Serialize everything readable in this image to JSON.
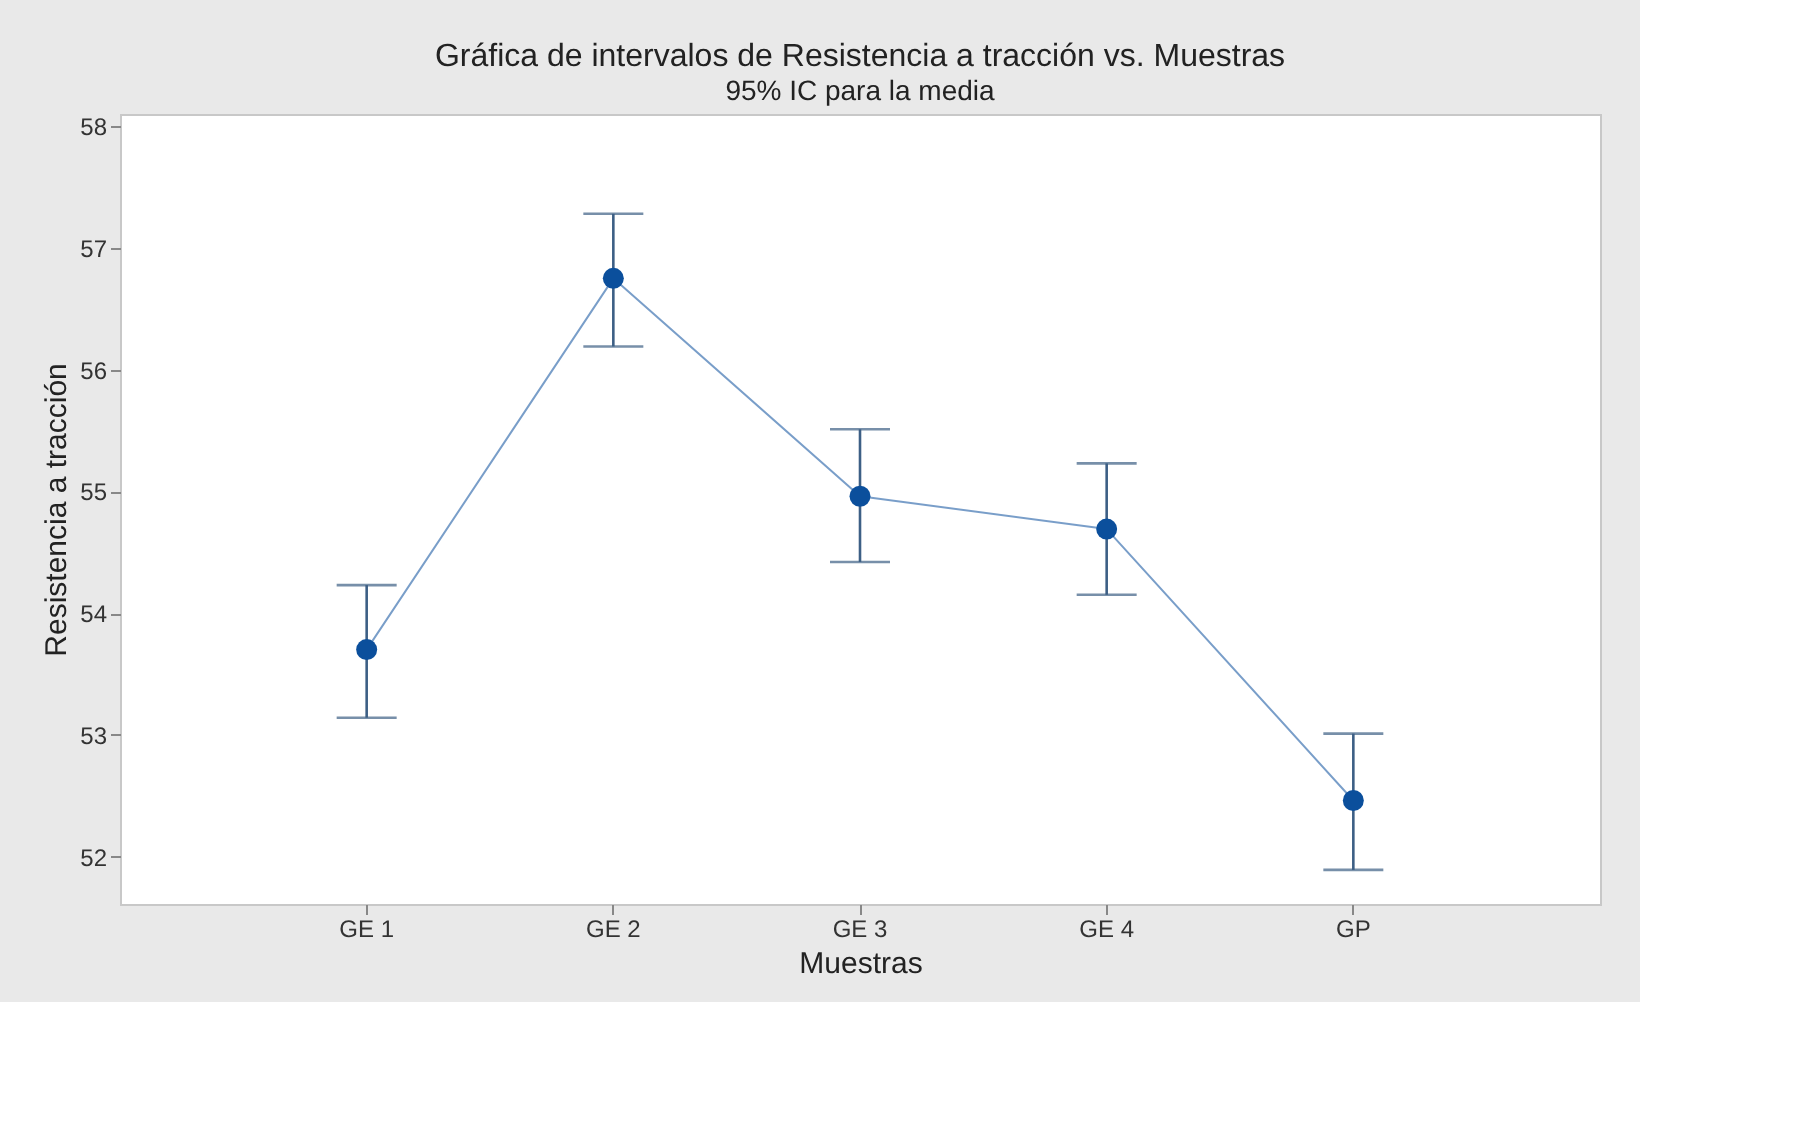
{
  "chart_data": {
    "type": "line",
    "title": "Gráfica de intervalos de Resistencia a tracción vs. Muestras",
    "subtitle": "95% IC para la media",
    "xlabel": "Muestras",
    "ylabel": "Resistencia a tracción",
    "categories": [
      "GE 1",
      "GE 2",
      "GE 3",
      "GE 4",
      "GP"
    ],
    "series": [
      {
        "color": "#0b4f9c",
        "values": [
          53.7,
          56.75,
          54.96,
          54.69,
          52.46
        ],
        "errors": [
          [
            53.14,
            54.23
          ],
          [
            56.19,
            57.28
          ],
          [
            54.42,
            55.51
          ],
          [
            54.15,
            55.23
          ],
          [
            51.89,
            53.01
          ]
        ]
      }
    ],
    "ylim": [
      51.61,
      58.1
    ],
    "yticks": [
      52,
      53,
      54,
      55,
      56,
      57,
      58
    ],
    "marker": "circle",
    "line_style": "solid",
    "grid": false
  }
}
